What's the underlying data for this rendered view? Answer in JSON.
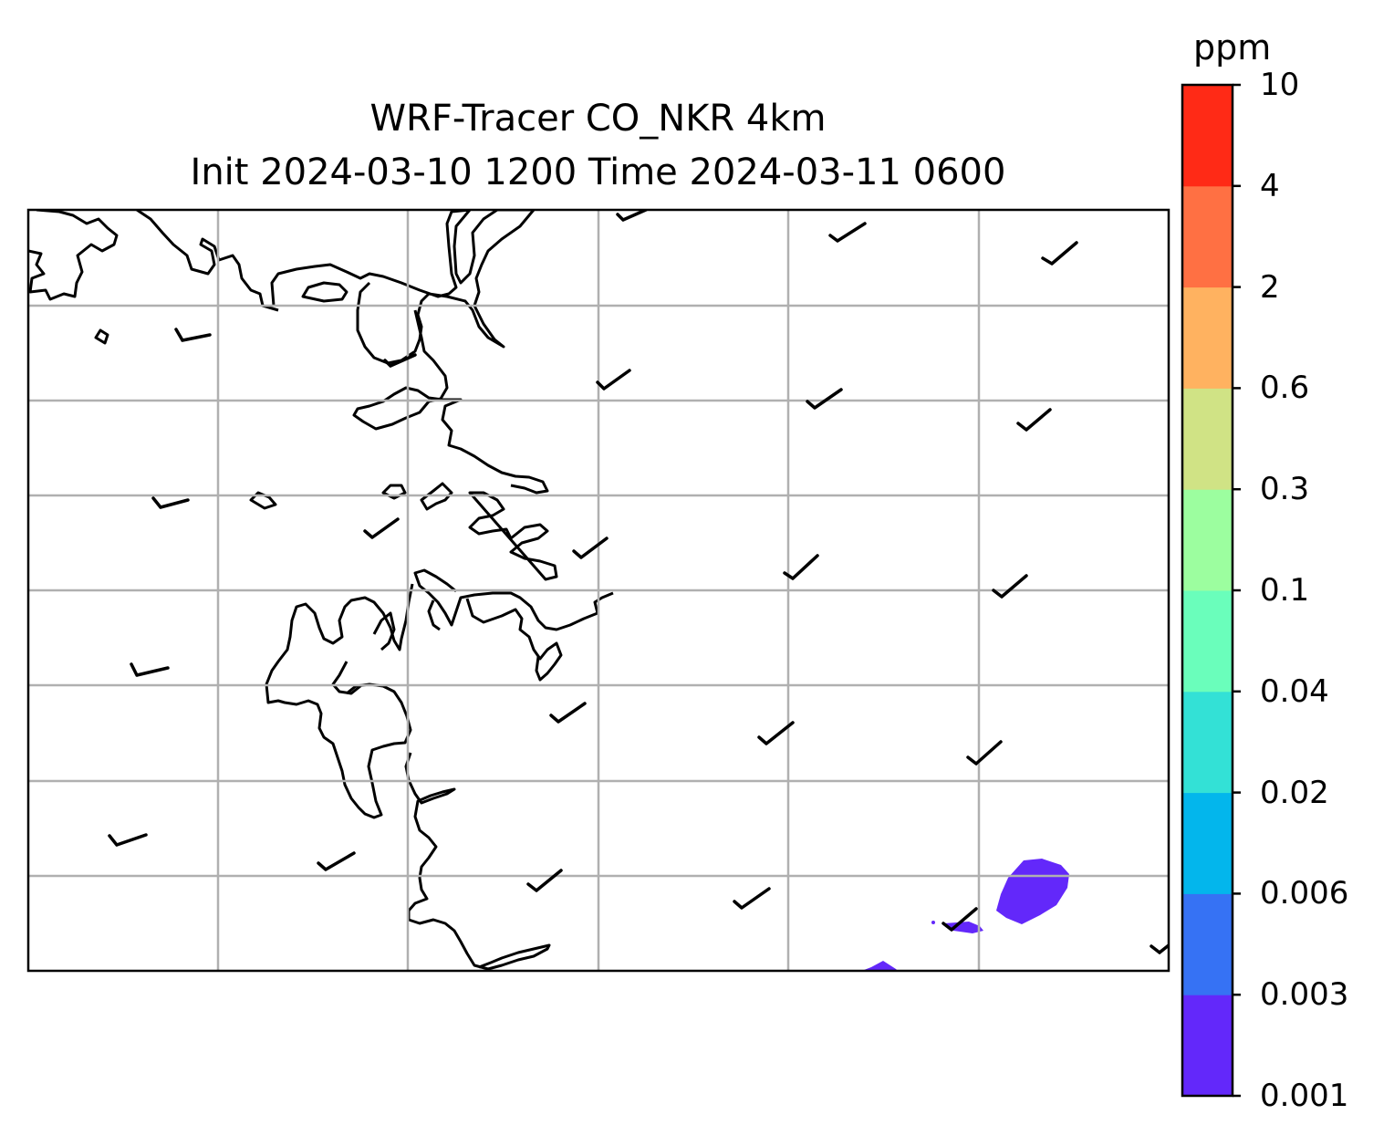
{
  "title": {
    "line1": "WRF-Tracer CO_NKR 4km",
    "line2": "Init 2024-03-10 1200 Time 2024-03-11 0600"
  },
  "colorbar": {
    "unit": "ppm",
    "levels": [
      "0.001",
      "0.003",
      "0.006",
      "0.02",
      "0.04",
      "0.1",
      "0.3",
      "0.6",
      "2",
      "4",
      "10"
    ],
    "colors": [
      "#6328fa",
      "#3672f4",
      "#03b6ec",
      "#33e1d6",
      "#6afebb",
      "#9cfe9f",
      "#d0e385",
      "#ffb260",
      "#ff7043",
      "#ff2a16"
    ]
  },
  "map": {
    "gridlines": "on",
    "coastline_color": "#000000",
    "gridline_color": "#b0b0b0",
    "tracer_fill_color": "#6328fa",
    "wind_barb_icon": "wind-barb-icon"
  }
}
